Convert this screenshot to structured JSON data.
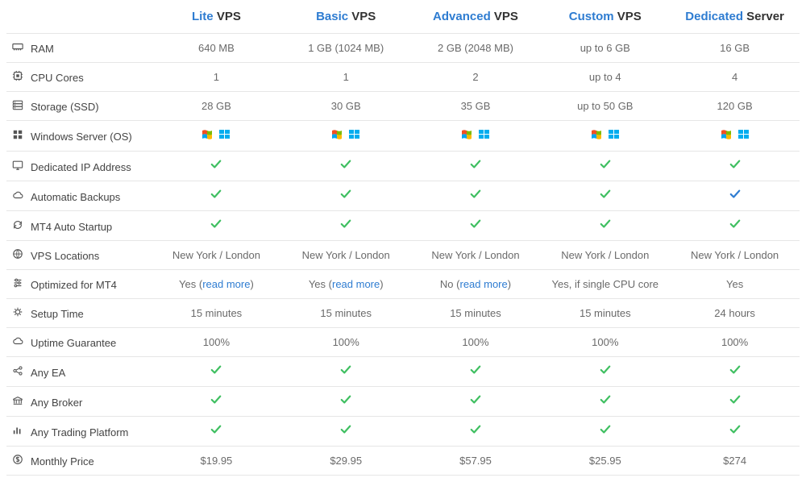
{
  "colors": {
    "link": "#2e7cd1",
    "check_green": "#3fbf61",
    "check_blue": "#2e7cd1",
    "border": "#e6e6e6",
    "text": "#4a4a4a",
    "muted": "#6a6a6a"
  },
  "plans": [
    {
      "highlight": "Lite",
      "suffix": "VPS"
    },
    {
      "highlight": "Basic",
      "suffix": "VPS"
    },
    {
      "highlight": "Advanced",
      "suffix": "VPS"
    },
    {
      "highlight": "Custom",
      "suffix": "VPS"
    },
    {
      "highlight": "Dedicated",
      "suffix": "Server"
    }
  ],
  "rows": [
    {
      "icon": "ram",
      "label": "RAM",
      "cells": [
        {
          "t": "text",
          "v": "640 MB"
        },
        {
          "t": "text",
          "v": "1 GB (1024 MB)"
        },
        {
          "t": "text",
          "v": "2 GB (2048 MB)"
        },
        {
          "t": "text",
          "v": "up to 6 GB"
        },
        {
          "t": "text",
          "v": "16 GB"
        }
      ]
    },
    {
      "icon": "cpu",
      "label": "CPU Cores",
      "cells": [
        {
          "t": "text",
          "v": "1"
        },
        {
          "t": "text",
          "v": "1"
        },
        {
          "t": "text",
          "v": "2"
        },
        {
          "t": "text",
          "v": "up to 4"
        },
        {
          "t": "text",
          "v": "4"
        }
      ]
    },
    {
      "icon": "storage",
      "label": "Storage (SSD)",
      "cells": [
        {
          "t": "text",
          "v": "28 GB"
        },
        {
          "t": "text",
          "v": "30 GB"
        },
        {
          "t": "text",
          "v": "35 GB"
        },
        {
          "t": "text",
          "v": "up to 50 GB"
        },
        {
          "t": "text",
          "v": "120 GB"
        }
      ]
    },
    {
      "icon": "windows",
      "label": "Windows Server (OS)",
      "cells": [
        {
          "t": "winicons"
        },
        {
          "t": "winicons"
        },
        {
          "t": "winicons"
        },
        {
          "t": "winicons"
        },
        {
          "t": "winicons"
        }
      ]
    },
    {
      "icon": "monitor",
      "label": "Dedicated IP Address",
      "cells": [
        {
          "t": "check"
        },
        {
          "t": "check"
        },
        {
          "t": "check"
        },
        {
          "t": "check"
        },
        {
          "t": "check"
        }
      ]
    },
    {
      "icon": "cloud",
      "label": "Automatic Backups",
      "cells": [
        {
          "t": "check"
        },
        {
          "t": "check"
        },
        {
          "t": "check"
        },
        {
          "t": "check"
        },
        {
          "t": "check",
          "color": "blue"
        }
      ]
    },
    {
      "icon": "refresh",
      "label": "MT4 Auto Startup",
      "cells": [
        {
          "t": "check"
        },
        {
          "t": "check"
        },
        {
          "t": "check"
        },
        {
          "t": "check"
        },
        {
          "t": "check"
        }
      ]
    },
    {
      "icon": "globe",
      "label": "VPS Locations",
      "cells": [
        {
          "t": "text",
          "v": "New York / London"
        },
        {
          "t": "text",
          "v": "New York / London"
        },
        {
          "t": "text",
          "v": "New York / London"
        },
        {
          "t": "text",
          "v": "New York / London"
        },
        {
          "t": "text",
          "v": "New York / London"
        }
      ]
    },
    {
      "icon": "sliders",
      "label": "Optimized for MT4",
      "cells": [
        {
          "t": "textlink",
          "v": "Yes ",
          "link": "read more"
        },
        {
          "t": "textlink",
          "v": "Yes ",
          "link": "read more"
        },
        {
          "t": "textlink",
          "v": "No ",
          "link": "read more"
        },
        {
          "t": "text",
          "v": "Yes, if single CPU core"
        },
        {
          "t": "text",
          "v": "Yes"
        }
      ]
    },
    {
      "icon": "gears",
      "label": "Setup Time",
      "cells": [
        {
          "t": "text",
          "v": "15 minutes"
        },
        {
          "t": "text",
          "v": "15 minutes"
        },
        {
          "t": "text",
          "v": "15 minutes"
        },
        {
          "t": "text",
          "v": "15 minutes"
        },
        {
          "t": "text",
          "v": "24 hours"
        }
      ]
    },
    {
      "icon": "cloud",
      "label": "Uptime Guarantee",
      "cells": [
        {
          "t": "text",
          "v": "100%"
        },
        {
          "t": "text",
          "v": "100%"
        },
        {
          "t": "text",
          "v": "100%"
        },
        {
          "t": "text",
          "v": "100%"
        },
        {
          "t": "text",
          "v": "100%"
        }
      ]
    },
    {
      "icon": "share",
      "label": "Any EA",
      "cells": [
        {
          "t": "check"
        },
        {
          "t": "check"
        },
        {
          "t": "check"
        },
        {
          "t": "check"
        },
        {
          "t": "check"
        }
      ]
    },
    {
      "icon": "bank",
      "label": "Any Broker",
      "cells": [
        {
          "t": "check"
        },
        {
          "t": "check"
        },
        {
          "t": "check"
        },
        {
          "t": "check"
        },
        {
          "t": "check"
        }
      ]
    },
    {
      "icon": "barchart",
      "label": "Any Trading Platform",
      "cells": [
        {
          "t": "check"
        },
        {
          "t": "check"
        },
        {
          "t": "check"
        },
        {
          "t": "check"
        },
        {
          "t": "check"
        }
      ]
    },
    {
      "icon": "dollar",
      "label": "Monthly Price",
      "cells": [
        {
          "t": "text",
          "v": "$19.95"
        },
        {
          "t": "text",
          "v": "$29.95"
        },
        {
          "t": "text",
          "v": "$57.95"
        },
        {
          "t": "text",
          "v": "$25.95"
        },
        {
          "t": "text",
          "v": "$274"
        }
      ]
    }
  ]
}
